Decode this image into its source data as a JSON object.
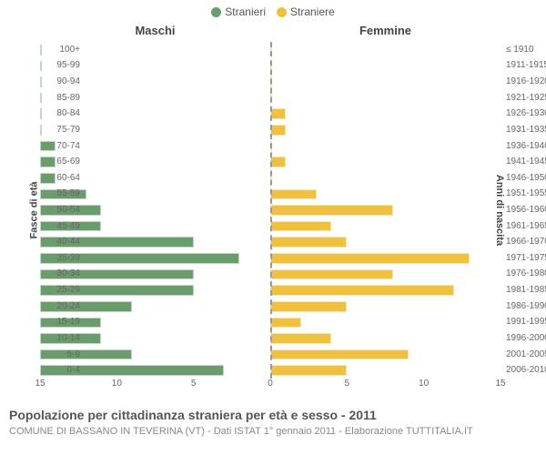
{
  "legend": {
    "male": {
      "label": "Stranieri",
      "color": "#6b9c6d"
    },
    "female": {
      "label": "Straniere",
      "color": "#f0c040"
    }
  },
  "columns": {
    "left": "Maschi",
    "right": "Femmine"
  },
  "axes": {
    "left_label": "Fasce di età",
    "right_label": "Anni di nascita",
    "xmax": 15,
    "xticks_left": [
      15,
      10,
      5,
      0
    ],
    "xticks_right": [
      0,
      5,
      10,
      15
    ],
    "xtick_fontsize": 10,
    "ytick_fontsize": 10,
    "label_fontsize": 11,
    "grid_color": "#999999",
    "background_color": "#ffffff"
  },
  "rows": [
    {
      "age": "100+",
      "birth": "≤ 1910",
      "m": 0,
      "f": 0
    },
    {
      "age": "95-99",
      "birth": "1911-1915",
      "m": 0,
      "f": 0
    },
    {
      "age": "90-94",
      "birth": "1916-1920",
      "m": 0,
      "f": 0
    },
    {
      "age": "85-89",
      "birth": "1921-1925",
      "m": 0,
      "f": 0
    },
    {
      "age": "80-84",
      "birth": "1926-1930",
      "m": 0,
      "f": 1
    },
    {
      "age": "75-79",
      "birth": "1931-1935",
      "m": 0,
      "f": 1
    },
    {
      "age": "70-74",
      "birth": "1936-1940",
      "m": 1,
      "f": 0
    },
    {
      "age": "65-69",
      "birth": "1941-1945",
      "m": 1,
      "f": 1
    },
    {
      "age": "60-64",
      "birth": "1946-1950",
      "m": 1,
      "f": 0
    },
    {
      "age": "55-59",
      "birth": "1951-1955",
      "m": 3,
      "f": 3
    },
    {
      "age": "50-54",
      "birth": "1956-1960",
      "m": 4,
      "f": 8
    },
    {
      "age": "45-49",
      "birth": "1961-1965",
      "m": 4,
      "f": 4
    },
    {
      "age": "40-44",
      "birth": "1966-1970",
      "m": 10,
      "f": 5
    },
    {
      "age": "35-39",
      "birth": "1971-1975",
      "m": 13,
      "f": 13
    },
    {
      "age": "30-34",
      "birth": "1976-1980",
      "m": 10,
      "f": 8
    },
    {
      "age": "25-29",
      "birth": "1981-1985",
      "m": 10,
      "f": 12
    },
    {
      "age": "20-24",
      "birth": "1986-1990",
      "m": 6,
      "f": 5
    },
    {
      "age": "15-19",
      "birth": "1991-1995",
      "m": 4,
      "f": 2
    },
    {
      "age": "10-14",
      "birth": "1996-2000",
      "m": 4,
      "f": 4
    },
    {
      "age": "5-9",
      "birth": "2001-2005",
      "m": 6,
      "f": 9
    },
    {
      "age": "0-4",
      "birth": "2006-2010",
      "m": 12,
      "f": 5
    }
  ],
  "title": "Popolazione per cittadinanza straniera per età e sesso - 2011",
  "subtitle": "COMUNE DI BASSANO IN TEVERINA (VT) - Dati ISTAT 1° gennaio 2011 - Elaborazione TUTTITALIA.IT",
  "title_fontsize": 14,
  "subtitle_fontsize": 11,
  "chart_type": "population-pyramid"
}
